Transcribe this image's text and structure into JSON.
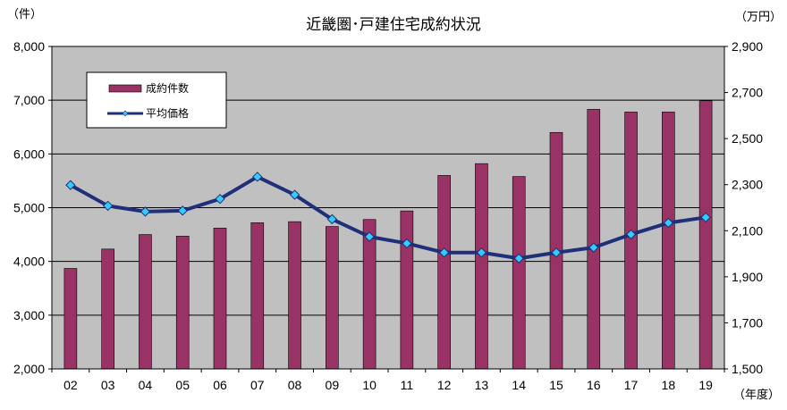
{
  "chart_data": {
    "type": "bar",
    "title": "近畿圏･戸建住宅成約状況",
    "left_unit": "（件）",
    "right_unit": "（万円）",
    "x_unit": "（年度）",
    "categories": [
      "02",
      "03",
      "04",
      "05",
      "06",
      "07",
      "08",
      "09",
      "10",
      "11",
      "12",
      "13",
      "14",
      "15",
      "16",
      "17",
      "18",
      "19"
    ],
    "series": [
      {
        "name": "成約件数",
        "type": "bar",
        "axis": "left",
        "color": "#993366",
        "values": [
          3870,
          4230,
          4500,
          4470,
          4620,
          4720,
          4740,
          4650,
          4780,
          4940,
          5600,
          5820,
          5580,
          6400,
          6830,
          6780,
          6780,
          6990
        ]
      },
      {
        "name": "平均価格",
        "type": "line",
        "axis": "right",
        "color": "#1f2f7a",
        "marker_color": "#33ccff",
        "values": [
          2298,
          2208,
          2183,
          2187,
          2238,
          2334,
          2256,
          2150,
          2074,
          2045,
          2005,
          2005,
          1980,
          2005,
          2027,
          2084,
          2134,
          2158
        ]
      }
    ],
    "y_left": {
      "min": 2000,
      "max": 8000,
      "ticks": [
        2000,
        3000,
        4000,
        5000,
        6000,
        7000,
        8000
      ],
      "tick_labels": [
        "2,000",
        "3,000",
        "4,000",
        "5,000",
        "6,000",
        "7,000",
        "8,000"
      ]
    },
    "y_right": {
      "min": 1500,
      "max": 2900,
      "ticks": [
        1500,
        1700,
        1900,
        2100,
        2300,
        2500,
        2700,
        2900
      ],
      "tick_labels": [
        "1,500",
        "1,700",
        "1,900",
        "2,100",
        "2,300",
        "2,500",
        "2,700",
        "2,900"
      ]
    },
    "plot_background": "#c0c0c0",
    "gridlines": "horizontal",
    "legend_position": "top-left"
  }
}
